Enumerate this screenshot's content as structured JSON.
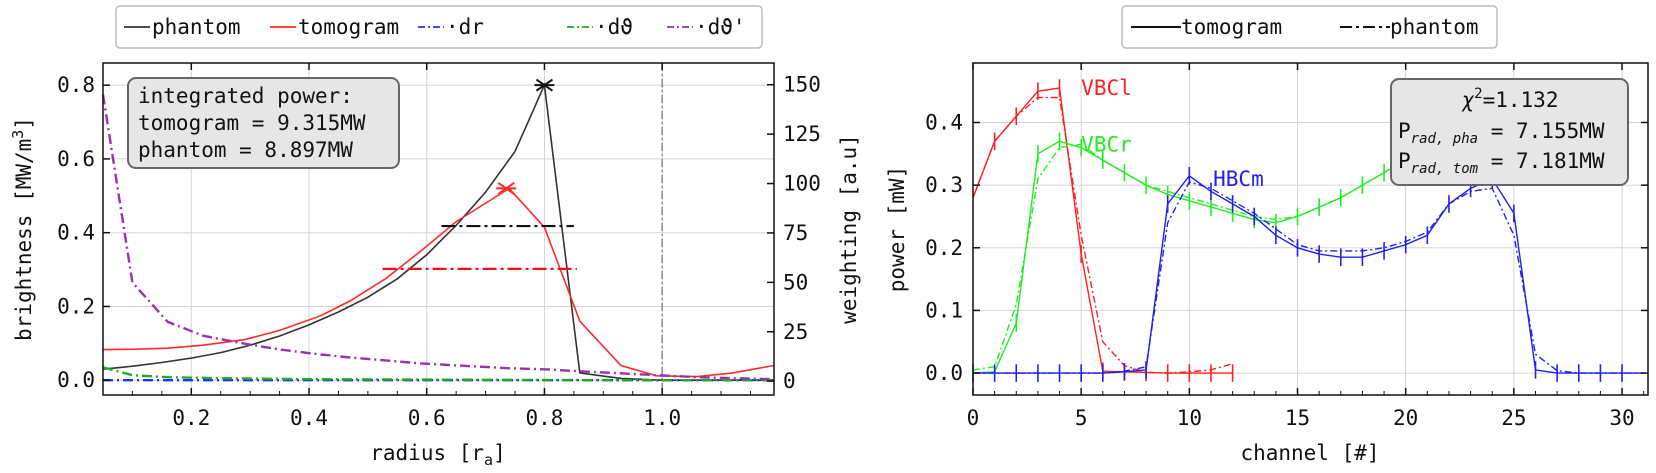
{
  "chart_data": [
    {
      "type": "line",
      "xlabel": "radius [r",
      "xlabel_sub": "a",
      "xlabel_end": "]",
      "ylabel": "brightness [MW/m",
      "ylabel_sup": "3",
      "ylabel_end": "]",
      "ylabel_right": "weighting [a.u]",
      "xlim": [
        0.05,
        1.19
      ],
      "ylim": [
        -0.04,
        0.86
      ],
      "ylim_right": [
        -7,
        161
      ],
      "xticks": [
        "0.2",
        "0.4",
        "0.6",
        "0.8",
        "1.0"
      ],
      "xtick_values": [
        0.2,
        0.4,
        0.6,
        0.8,
        1.0
      ],
      "yticks": [
        "0.0",
        "0.2",
        "0.4",
        "0.6",
        "0.8"
      ],
      "ytick_values": [
        0.0,
        0.2,
        0.4,
        0.6,
        0.8
      ],
      "yticks_right": [
        "0",
        "25",
        "50",
        "75",
        "100",
        "125",
        "150"
      ],
      "ytick_right_values": [
        0,
        25,
        50,
        75,
        100,
        125,
        150
      ],
      "grid": true,
      "legend_position": "top, outside",
      "legend": [
        {
          "label": "phantom",
          "color": "#333333",
          "dash": "solid"
        },
        {
          "label": "tomogram",
          "color": "#ff2a2a",
          "dash": "solid"
        },
        {
          "label": "·dr",
          "color": "#2233ee",
          "dash": "dashdot"
        },
        {
          "label": "·dϑ",
          "color": "#22aa22",
          "dash": "dashdot"
        },
        {
          "label": "·dϑ'",
          "color": "#9933aa",
          "dash": "dashdot"
        }
      ],
      "series": [
        {
          "name": "phantom",
          "color": "#333333",
          "axis": "left",
          "x": [
            0.05,
            0.1,
            0.15,
            0.2,
            0.25,
            0.3,
            0.35,
            0.4,
            0.45,
            0.5,
            0.55,
            0.6,
            0.65,
            0.7,
            0.75,
            0.8,
            0.86,
            0.93,
            1.0,
            1.19
          ],
          "y": [
            0.03,
            0.038,
            0.048,
            0.06,
            0.075,
            0.095,
            0.12,
            0.15,
            0.185,
            0.225,
            0.275,
            0.34,
            0.42,
            0.51,
            0.62,
            0.8,
            0.02,
            0.005,
            0.0,
            0.0
          ]
        },
        {
          "name": "tomogram",
          "color": "#ff2a2a",
          "axis": "left",
          "x": [
            0.05,
            0.1,
            0.16,
            0.22,
            0.29,
            0.35,
            0.42,
            0.47,
            0.53,
            0.59,
            0.65,
            0.71,
            0.74,
            0.8,
            0.86,
            0.93,
            0.99,
            1.06,
            1.12,
            1.19
          ],
          "y": [
            0.083,
            0.084,
            0.087,
            0.095,
            0.11,
            0.135,
            0.175,
            0.215,
            0.275,
            0.35,
            0.43,
            0.49,
            0.52,
            0.415,
            0.16,
            0.04,
            0.012,
            0.01,
            0.02,
            0.04
          ]
        },
        {
          "name": "dr",
          "color": "#2233ee",
          "axis": "right",
          "dash": "dashdot",
          "x": [
            0.05,
            0.1,
            0.2,
            0.4,
            0.6,
            0.8,
            1.0,
            1.19
          ],
          "y": [
            0.5,
            0.5,
            0.5,
            0.5,
            0.5,
            0.5,
            0.5,
            0.5
          ]
        },
        {
          "name": "dϑ",
          "color": "#22aa22",
          "axis": "right",
          "dash": "dashdot",
          "x": [
            0.05,
            0.1,
            0.16,
            0.25,
            0.4,
            0.6,
            0.8,
            1.0,
            1.19
          ],
          "y": [
            7,
            3,
            2,
            1.5,
            1.0,
            0.8,
            0.6,
            0.5,
            0.5
          ]
        },
        {
          "name": "dϑ'",
          "color": "#9933aa",
          "axis": "right",
          "dash": "dashdot",
          "x": [
            0.05,
            0.1,
            0.16,
            0.22,
            0.29,
            0.35,
            0.42,
            0.47,
            0.53,
            0.59,
            0.65,
            0.71,
            0.74,
            0.8,
            0.86,
            0.93,
            0.99,
            1.06,
            1.12,
            1.19
          ],
          "y": [
            145,
            50,
            30,
            23,
            19,
            16,
            13.5,
            12,
            10.5,
            9,
            8,
            7,
            6.5,
            6,
            5,
            4,
            3,
            2,
            1.5,
            1
          ]
        }
      ],
      "markers": [
        {
          "series": "phantom",
          "x": 0.8,
          "y": 0.8,
          "color": "#111111"
        },
        {
          "series": "tomogram",
          "x": 0.735,
          "y": 0.52,
          "color": "#ff2a2a"
        }
      ],
      "widths": [
        {
          "series": "phantom",
          "x0": 0.625,
          "x1": 0.85,
          "y": 0.418,
          "color": "#111111"
        },
        {
          "series": "tomogram",
          "x0": 0.525,
          "x1": 0.855,
          "y": 0.302,
          "color": "#ee1111"
        }
      ],
      "vline": {
        "x": 1.0,
        "color": "#888888"
      },
      "annotation": {
        "title": "integrated power:",
        "tomogram_label": "tomogram = 9.315MW",
        "phantom_label": "phantom = 8.897MW"
      }
    },
    {
      "type": "line",
      "xlabel": "channel [#]",
      "ylabel": "power [mW]",
      "xlim": [
        0,
        31.2
      ],
      "ylim": [
        -0.035,
        0.495
      ],
      "xticks": [
        "0",
        "5",
        "10",
        "15",
        "20",
        "25",
        "30"
      ],
      "xtick_values": [
        0,
        5,
        10,
        15,
        20,
        25,
        30
      ],
      "yticks": [
        "0.0",
        "0.1",
        "0.2",
        "0.3",
        "0.4"
      ],
      "ytick_values": [
        0.0,
        0.1,
        0.2,
        0.3,
        0.4
      ],
      "grid": true,
      "legend_position": "top, outside",
      "legend": [
        {
          "label": "tomogram",
          "dash": "solid"
        },
        {
          "label": "phantom",
          "dash": "dashdot"
        }
      ],
      "groups": [
        {
          "name": "VBCl",
          "color": "#ff2020",
          "tomogram": {
            "x": [
              0,
              1,
              2,
              3,
              4,
              5,
              6,
              7,
              8,
              9,
              10,
              11,
              12
            ],
            "y": [
              0.28,
              0.37,
              0.41,
              0.45,
              0.455,
              0.19,
              0.003,
              0.002,
              0.001,
              0.0,
              0.0,
              0.0,
              0.0
            ]
          },
          "phantom": {
            "x": [
              0,
              1,
              2,
              3,
              4,
              5,
              6,
              7,
              8,
              9,
              10,
              11,
              12
            ],
            "y": [
              0.28,
              0.37,
              0.41,
              0.44,
              0.44,
              0.22,
              0.05,
              0.012,
              0.001,
              0.0,
              0.002,
              0.005,
              0.015
            ]
          }
        },
        {
          "name": "VBCr",
          "color": "#20f020",
          "tomogram": {
            "x": [
              0,
              1,
              2,
              3,
              4,
              5,
              6,
              7,
              8,
              9,
              10,
              11,
              12,
              13,
              14,
              15,
              16,
              17,
              18,
              19,
              20,
              21
            ],
            "y": [
              0.0,
              0.002,
              0.08,
              0.35,
              0.37,
              0.36,
              0.34,
              0.32,
              0.3,
              0.285,
              0.275,
              0.265,
              0.255,
              0.245,
              0.24,
              0.25,
              0.265,
              0.28,
              0.3,
              0.32,
              0.34,
              0.35
            ]
          },
          "phantom": {
            "x": [
              0,
              1,
              2,
              3,
              4,
              5,
              6,
              7,
              8,
              9,
              10,
              11,
              12,
              13,
              14,
              15,
              16,
              17,
              18,
              19,
              20,
              21
            ],
            "y": [
              0.005,
              0.01,
              0.11,
              0.31,
              0.36,
              0.365,
              0.34,
              0.32,
              0.3,
              0.29,
              0.28,
              0.27,
              0.26,
              0.25,
              0.245,
              0.25,
              0.265,
              0.28,
              0.3,
              0.32,
              0.34,
              0.35
            ]
          }
        },
        {
          "name": "HBCm",
          "color": "#2020ee",
          "tomogram": {
            "x": [
              0,
              1,
              2,
              3,
              4,
              5,
              6,
              7,
              8,
              9,
              10,
              11,
              12,
              13,
              14,
              15,
              16,
              17,
              18,
              19,
              20,
              21,
              22,
              23,
              24,
              25,
              26,
              27,
              28,
              29,
              30,
              31
            ],
            "y": [
              0.0,
              0.0,
              0.0,
              0.0,
              0.0,
              0.0,
              0.0,
              0.002,
              0.005,
              0.27,
              0.315,
              0.29,
              0.27,
              0.25,
              0.22,
              0.2,
              0.19,
              0.185,
              0.185,
              0.195,
              0.205,
              0.22,
              0.27,
              0.295,
              0.31,
              0.255,
              0.005,
              0.0,
              0.0,
              0.0,
              0.0,
              0.0
            ]
          },
          "phantom": {
            "x": [
              0,
              1,
              2,
              3,
              4,
              5,
              6,
              7,
              8,
              9,
              10,
              11,
              12,
              13,
              14,
              15,
              16,
              17,
              18,
              19,
              20,
              21,
              22,
              23,
              24,
              25,
              26,
              27,
              28,
              29,
              30,
              31
            ],
            "y": [
              0.0,
              0.0,
              0.0,
              0.0,
              0.0,
              0.0,
              0.0,
              0.003,
              0.01,
              0.24,
              0.305,
              0.295,
              0.275,
              0.255,
              0.23,
              0.205,
              0.195,
              0.195,
              0.195,
              0.2,
              0.21,
              0.225,
              0.27,
              0.29,
              0.295,
              0.22,
              0.03,
              0.004,
              0.0,
              0.0,
              0.0,
              0.0
            ]
          }
        }
      ],
      "errorbars": [
        {
          "color": "#ff2020",
          "x": [
            1,
            2,
            3,
            4,
            5,
            6,
            7,
            8,
            9,
            10,
            11,
            12
          ],
          "y": [
            0.37,
            0.41,
            0.45,
            0.455,
            0.19,
            0.003,
            0.002,
            0.001,
            0.0,
            0.0,
            0.0,
            0.0
          ],
          "half": 0.014
        },
        {
          "color": "#20f020",
          "x": [
            2,
            3,
            4,
            5,
            6,
            7,
            8,
            9,
            10,
            11,
            12,
            13,
            14,
            15,
            16,
            17,
            18,
            19,
            20,
            21
          ],
          "y": [
            0.08,
            0.35,
            0.37,
            0.36,
            0.34,
            0.32,
            0.3,
            0.285,
            0.275,
            0.265,
            0.255,
            0.245,
            0.24,
            0.25,
            0.265,
            0.28,
            0.3,
            0.32,
            0.34,
            0.35
          ],
          "half": 0.014
        },
        {
          "color": "#2020ee",
          "x": [
            0,
            1,
            2,
            3,
            4,
            5,
            6,
            7,
            8,
            9,
            10,
            11,
            12,
            13,
            14,
            15,
            16,
            17,
            18,
            19,
            20,
            21,
            22,
            23,
            24,
            25,
            26,
            27,
            28,
            29,
            30
          ],
          "y": [
            0.0,
            0.0,
            0.0,
            0.0,
            0.0,
            0.0,
            0.0,
            0.002,
            0.005,
            0.27,
            0.315,
            0.29,
            0.27,
            0.25,
            0.22,
            0.2,
            0.19,
            0.185,
            0.185,
            0.195,
            0.205,
            0.22,
            0.27,
            0.295,
            0.31,
            0.255,
            0.005,
            0.0,
            0.0,
            0.0,
            0.0
          ],
          "half": 0.014
        }
      ],
      "labels": [
        {
          "text": "VBCl",
          "x": 5.0,
          "y": 0.455,
          "color": "#ff2020"
        },
        {
          "text": "VBCr",
          "x": 5.0,
          "y": 0.365,
          "color": "#20f020"
        },
        {
          "text": "HBCm",
          "x": 11.1,
          "y": 0.31,
          "color": "#2020ee"
        }
      ],
      "annotation": {
        "chi_label": "χ",
        "chi_sup": "2",
        "chi_value": "=1.132",
        "prad_pha_label": "P",
        "prad_pha_sub": "rad, pha",
        "prad_pha_value": " = 7.155MW",
        "prad_tom_label": "P",
        "prad_tom_sub": "rad, tom",
        "prad_tom_value": " = 7.181MW"
      }
    }
  ]
}
